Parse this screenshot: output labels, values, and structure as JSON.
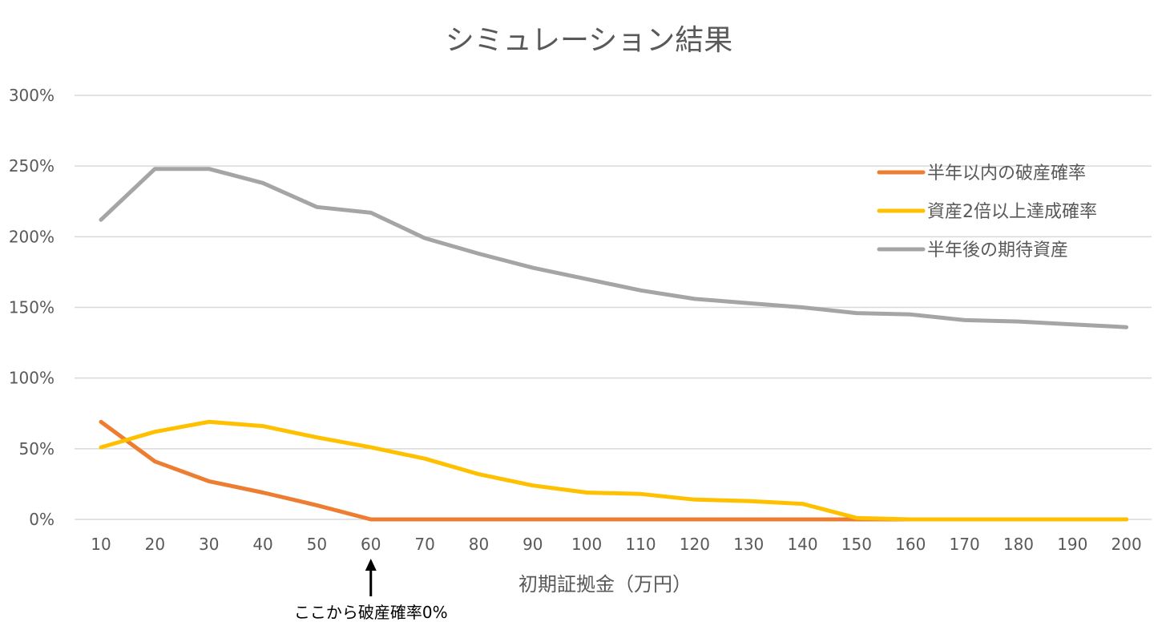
{
  "chart_data": {
    "type": "line",
    "title": "シミュレーション結果",
    "xlabel": "初期証拠金（万円）",
    "ylabel": "",
    "ylim": [
      0,
      300
    ],
    "yticks": [
      0,
      50,
      100,
      150,
      200,
      250,
      300
    ],
    "ytick_labels": [
      "0%",
      "50%",
      "100%",
      "150%",
      "200%",
      "250%",
      "300%"
    ],
    "categories": [
      "10",
      "20",
      "30",
      "40",
      "50",
      "60",
      "70",
      "80",
      "90",
      "100",
      "110",
      "120",
      "130",
      "140",
      "150",
      "160",
      "170",
      "180",
      "190",
      "200"
    ],
    "grid": true,
    "legend_position": "top-right",
    "series": [
      {
        "name": "半年以内の破産確率",
        "color": "#ED7D31",
        "values": [
          69,
          41,
          27,
          19,
          10,
          0,
          0,
          0,
          0,
          0,
          0,
          0,
          0,
          0,
          0,
          0,
          0,
          0,
          0,
          0
        ]
      },
      {
        "name": "資産2倍以上達成確率",
        "color": "#FFC000",
        "values": [
          51,
          62,
          69,
          66,
          58,
          51,
          43,
          32,
          24,
          19,
          18,
          14,
          13,
          11,
          1,
          0,
          0,
          0,
          0,
          0
        ]
      },
      {
        "name": "半年後の期待資産",
        "color": "#A5A5A5",
        "values": [
          212,
          248,
          248,
          238,
          221,
          217,
          199,
          188,
          178,
          170,
          162,
          156,
          153,
          150,
          146,
          145,
          141,
          140,
          138,
          136
        ]
      }
    ],
    "annotation": {
      "text": "ここから破産確率0%",
      "category": "60"
    }
  },
  "colors": {
    "gridline": "#D9D9D9",
    "text": "#595959",
    "annotation": "#000000"
  }
}
